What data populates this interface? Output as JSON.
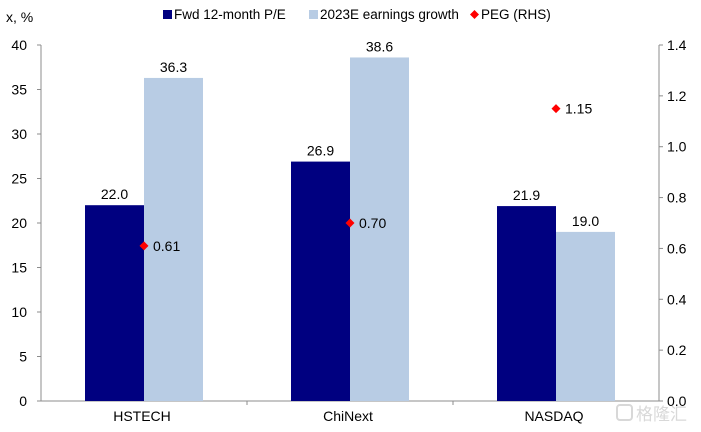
{
  "chart_data": {
    "type": "bar",
    "title": "",
    "y_unit_label": "x, %",
    "categories": [
      "HSTECH",
      "ChiNext",
      "NASDAQ"
    ],
    "series": [
      {
        "name": "Fwd 12-month P/E",
        "axis": "left",
        "kind": "bar",
        "color": "#000080",
        "values": [
          22.0,
          26.9,
          21.9
        ],
        "labels": [
          "22.0",
          "26.9",
          "21.9"
        ]
      },
      {
        "name": "2023E earnings growth",
        "axis": "left",
        "kind": "bar",
        "color": "#b8cce4",
        "values": [
          36.3,
          38.6,
          19.0
        ],
        "labels": [
          "36.3",
          "38.6",
          "19.0"
        ]
      },
      {
        "name": "PEG (RHS)",
        "axis": "right",
        "kind": "scatter",
        "marker": "diamond",
        "color": "#ff0000",
        "values": [
          0.61,
          0.7,
          1.15
        ],
        "labels": [
          "0.61",
          "0.70",
          "1.15"
        ]
      }
    ],
    "y_left": {
      "min": 0,
      "max": 40,
      "step": 5,
      "ticks": [
        "0",
        "5",
        "10",
        "15",
        "20",
        "25",
        "30",
        "35",
        "40"
      ]
    },
    "y_right": {
      "min": 0,
      "max": 1.4,
      "step": 0.2,
      "ticks": [
        "0.0",
        "0.2",
        "0.4",
        "0.6",
        "0.8",
        "1.0",
        "1.2",
        "1.4"
      ]
    },
    "xlabel": "",
    "ylabel": "",
    "grid": false,
    "legend_position": "top-center"
  },
  "watermark": "格隆汇"
}
